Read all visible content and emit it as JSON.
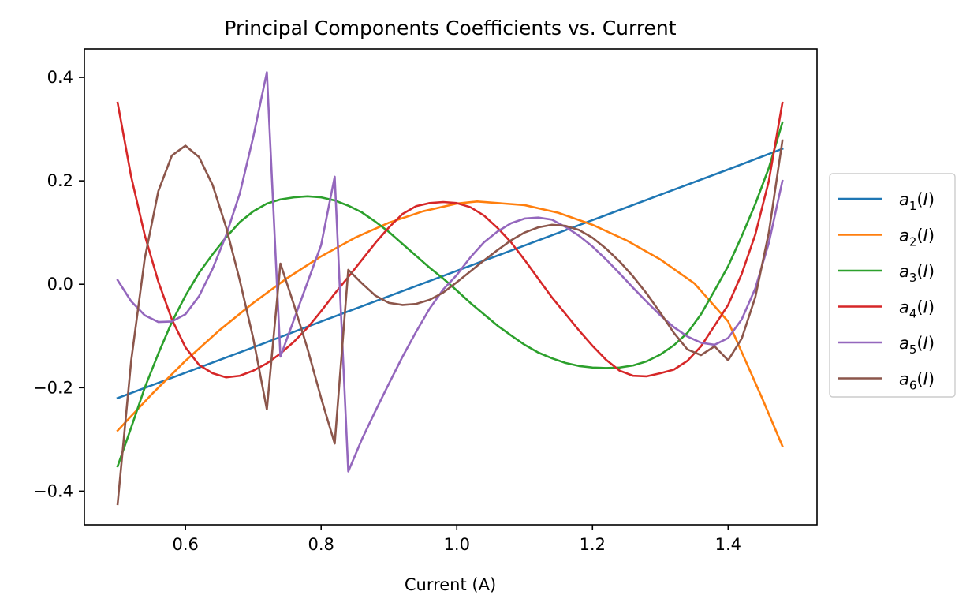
{
  "chart_data": {
    "type": "line",
    "title": "Principal Components Coefficients vs. Current",
    "xlabel": "Current (A)",
    "ylabel": "",
    "xlim": [
      0.451,
      1.531
    ],
    "ylim": [
      -0.465,
      0.455
    ],
    "xticks": [
      0.6,
      0.8,
      1.0,
      1.2,
      1.4
    ],
    "xtick_labels": [
      "0.6",
      "0.8",
      "1.0",
      "1.2",
      "1.4"
    ],
    "yticks": [
      -0.4,
      -0.2,
      0.0,
      0.2,
      0.4
    ],
    "ytick_labels": [
      "−0.4",
      "−0.2",
      "0.0",
      "0.2",
      "0.4"
    ],
    "grid": false,
    "legend_position": "outside-right",
    "series": [
      {
        "base": "a",
        "sub": "1",
        "arg": "I",
        "color": "#1f77b4",
        "x": [
          0.5,
          0.6,
          0.7,
          0.8,
          0.9,
          1.0,
          1.1,
          1.2,
          1.3,
          1.4,
          1.48
        ],
        "y": [
          -0.22,
          -0.171,
          -0.122,
          -0.072,
          -0.023,
          0.026,
          0.075,
          0.124,
          0.173,
          0.222,
          0.262
        ]
      },
      {
        "base": "a",
        "sub": "2",
        "arg": "I",
        "color": "#ff7f0e",
        "x": [
          0.5,
          0.55,
          0.6,
          0.65,
          0.7,
          0.75,
          0.8,
          0.85,
          0.9,
          0.95,
          1.0,
          1.03,
          1.1,
          1.15,
          1.2,
          1.25,
          1.3,
          1.35,
          1.4,
          1.45,
          1.48
        ],
        "y": [
          -0.283,
          -0.213,
          -0.148,
          -0.089,
          -0.036,
          0.012,
          0.054,
          0.09,
          0.119,
          0.141,
          0.156,
          0.16,
          0.153,
          0.138,
          0.115,
          0.085,
          0.048,
          0.002,
          -0.072,
          -0.22,
          -0.313
        ]
      },
      {
        "base": "a",
        "sub": "3",
        "arg": "I",
        "color": "#2ca02c",
        "x": [
          0.5,
          0.52,
          0.54,
          0.56,
          0.58,
          0.6,
          0.62,
          0.64,
          0.66,
          0.68,
          0.7,
          0.72,
          0.74,
          0.76,
          0.78,
          0.8,
          0.82,
          0.84,
          0.86,
          0.88,
          0.9,
          0.92,
          0.94,
          0.96,
          0.98,
          1.0,
          1.02,
          1.04,
          1.06,
          1.08,
          1.1,
          1.12,
          1.14,
          1.16,
          1.18,
          1.2,
          1.22,
          1.24,
          1.26,
          1.28,
          1.3,
          1.32,
          1.34,
          1.36,
          1.38,
          1.4,
          1.42,
          1.44,
          1.46,
          1.48
        ],
        "y": [
          -0.352,
          -0.277,
          -0.2,
          -0.134,
          -0.073,
          -0.022,
          0.022,
          0.058,
          0.091,
          0.12,
          0.141,
          0.156,
          0.164,
          0.168,
          0.17,
          0.168,
          0.162,
          0.152,
          0.139,
          0.121,
          0.101,
          0.078,
          0.055,
          0.032,
          0.011,
          -0.012,
          -0.036,
          -0.058,
          -0.08,
          -0.099,
          -0.117,
          -0.132,
          -0.143,
          -0.152,
          -0.158,
          -0.161,
          -0.162,
          -0.161,
          -0.157,
          -0.149,
          -0.136,
          -0.118,
          -0.094,
          -0.058,
          -0.012,
          0.035,
          0.093,
          0.155,
          0.225,
          0.313
        ]
      },
      {
        "base": "a",
        "sub": "4",
        "arg": "I",
        "color": "#d62728",
        "x": [
          0.5,
          0.52,
          0.54,
          0.56,
          0.58,
          0.6,
          0.62,
          0.64,
          0.66,
          0.68,
          0.7,
          0.72,
          0.74,
          0.76,
          0.78,
          0.8,
          0.82,
          0.84,
          0.86,
          0.88,
          0.9,
          0.92,
          0.94,
          0.96,
          0.98,
          1.0,
          1.02,
          1.04,
          1.06,
          1.08,
          1.1,
          1.12,
          1.14,
          1.16,
          1.18,
          1.2,
          1.22,
          1.24,
          1.26,
          1.28,
          1.3,
          1.32,
          1.34,
          1.36,
          1.38,
          1.4,
          1.42,
          1.44,
          1.46,
          1.48
        ],
        "y": [
          0.351,
          0.208,
          0.095,
          0.005,
          -0.068,
          -0.122,
          -0.156,
          -0.172,
          -0.18,
          -0.177,
          -0.167,
          -0.153,
          -0.134,
          -0.111,
          -0.084,
          -0.052,
          -0.018,
          0.014,
          0.047,
          0.08,
          0.11,
          0.136,
          0.151,
          0.157,
          0.159,
          0.157,
          0.149,
          0.133,
          0.109,
          0.081,
          0.047,
          0.011,
          -0.025,
          -0.057,
          -0.089,
          -0.119,
          -0.146,
          -0.167,
          -0.177,
          -0.178,
          -0.172,
          -0.165,
          -0.148,
          -0.12,
          -0.08,
          -0.04,
          0.02,
          0.096,
          0.2,
          0.351
        ]
      },
      {
        "base": "a",
        "sub": "5",
        "arg": "I",
        "color": "#9467bd",
        "x": [
          0.5,
          0.52,
          0.54,
          0.56,
          0.58,
          0.6,
          0.62,
          0.64,
          0.66,
          0.68,
          0.7,
          0.72,
          0.74,
          0.76,
          0.78,
          0.8,
          0.82,
          0.84,
          0.86,
          0.88,
          0.9,
          0.92,
          0.94,
          0.96,
          0.98,
          1.0,
          1.02,
          1.04,
          1.06,
          1.08,
          1.1,
          1.12,
          1.14,
          1.16,
          1.18,
          1.2,
          1.22,
          1.24,
          1.26,
          1.28,
          1.3,
          1.32,
          1.34,
          1.36,
          1.38,
          1.4,
          1.42,
          1.44,
          1.46,
          1.48
        ],
        "y": [
          0.008,
          -0.033,
          -0.06,
          -0.073,
          -0.072,
          -0.058,
          -0.023,
          0.03,
          0.095,
          0.175,
          0.285,
          0.41,
          -0.14,
          -0.068,
          0.004,
          0.076,
          0.208,
          -0.362,
          -0.3,
          -0.245,
          -0.192,
          -0.14,
          -0.092,
          -0.047,
          -0.01,
          0.018,
          0.052,
          0.081,
          0.102,
          0.118,
          0.127,
          0.129,
          0.125,
          0.111,
          0.094,
          0.073,
          0.048,
          0.021,
          -0.007,
          -0.034,
          -0.06,
          -0.083,
          -0.101,
          -0.113,
          -0.117,
          -0.104,
          -0.068,
          -0.008,
          0.08,
          0.2
        ]
      },
      {
        "base": "a",
        "sub": "6",
        "arg": "I",
        "color": "#8c564b",
        "x": [
          0.5,
          0.52,
          0.54,
          0.56,
          0.58,
          0.6,
          0.62,
          0.64,
          0.66,
          0.68,
          0.7,
          0.72,
          0.74,
          0.76,
          0.78,
          0.8,
          0.82,
          0.84,
          0.86,
          0.88,
          0.9,
          0.92,
          0.94,
          0.96,
          0.98,
          1.0,
          1.02,
          1.04,
          1.06,
          1.08,
          1.1,
          1.12,
          1.14,
          1.16,
          1.18,
          1.2,
          1.22,
          1.24,
          1.26,
          1.28,
          1.3,
          1.32,
          1.34,
          1.36,
          1.38,
          1.4,
          1.42,
          1.44,
          1.46,
          1.48
        ],
        "y": [
          -0.425,
          -0.148,
          0.05,
          0.18,
          0.249,
          0.268,
          0.246,
          0.192,
          0.11,
          0.008,
          -0.105,
          -0.242,
          0.04,
          -0.04,
          -0.125,
          -0.22,
          -0.308,
          0.028,
          0.002,
          -0.022,
          -0.036,
          -0.04,
          -0.038,
          -0.03,
          -0.016,
          0.004,
          0.025,
          0.046,
          0.066,
          0.085,
          0.1,
          0.11,
          0.115,
          0.113,
          0.105,
          0.09,
          0.069,
          0.044,
          0.015,
          -0.018,
          -0.055,
          -0.094,
          -0.126,
          -0.137,
          -0.12,
          -0.147,
          -0.105,
          -0.025,
          0.1,
          0.278
        ]
      }
    ]
  }
}
